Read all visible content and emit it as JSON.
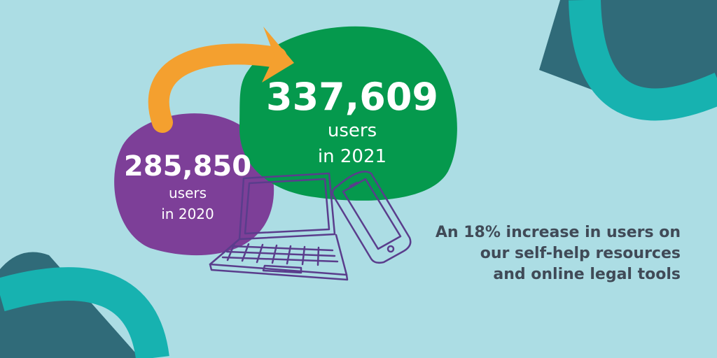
{
  "colors": {
    "background": "#acdde4",
    "teal": "#17b2b0",
    "slate": "#306b79",
    "purple": "#7d3f98",
    "green": "#05994d",
    "orange": "#f4a02f",
    "sketch": "#5a3d8c",
    "caption_text": "#404a57"
  },
  "icons": [
    "curved-arrow-icon",
    "laptop-icon",
    "smartphone-icon"
  ],
  "stats": [
    {
      "value": "285,850",
      "line1": "users",
      "line2": "in 2020"
    },
    {
      "value": "337,609",
      "line1": "users",
      "line2": "in 2021"
    }
  ],
  "caption": {
    "line1": "An 18% increase in users on",
    "line2": "our self-help resources",
    "line3": "and online legal tools"
  }
}
